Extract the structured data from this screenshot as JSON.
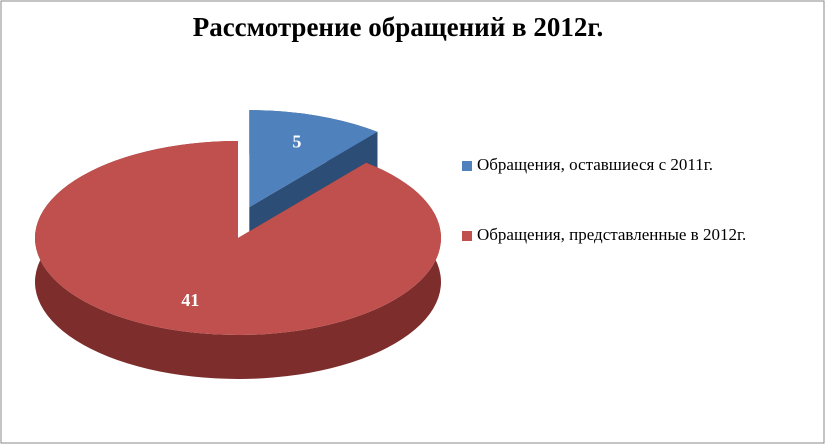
{
  "chart_data": {
    "type": "pie3d",
    "title": "Рассмотрение обращений в 2012г.",
    "categories": [
      "Обращения, оставшиеся с  2011г.",
      "Обращения, представленные в 2012г."
    ],
    "values": [
      5,
      41
    ],
    "colors": [
      "#4f81bd",
      "#c0504d"
    ],
    "side_colors": [
      "#2c4d75",
      "#7d2d2b"
    ],
    "exploded": [
      true,
      false
    ],
    "legend": "right"
  }
}
